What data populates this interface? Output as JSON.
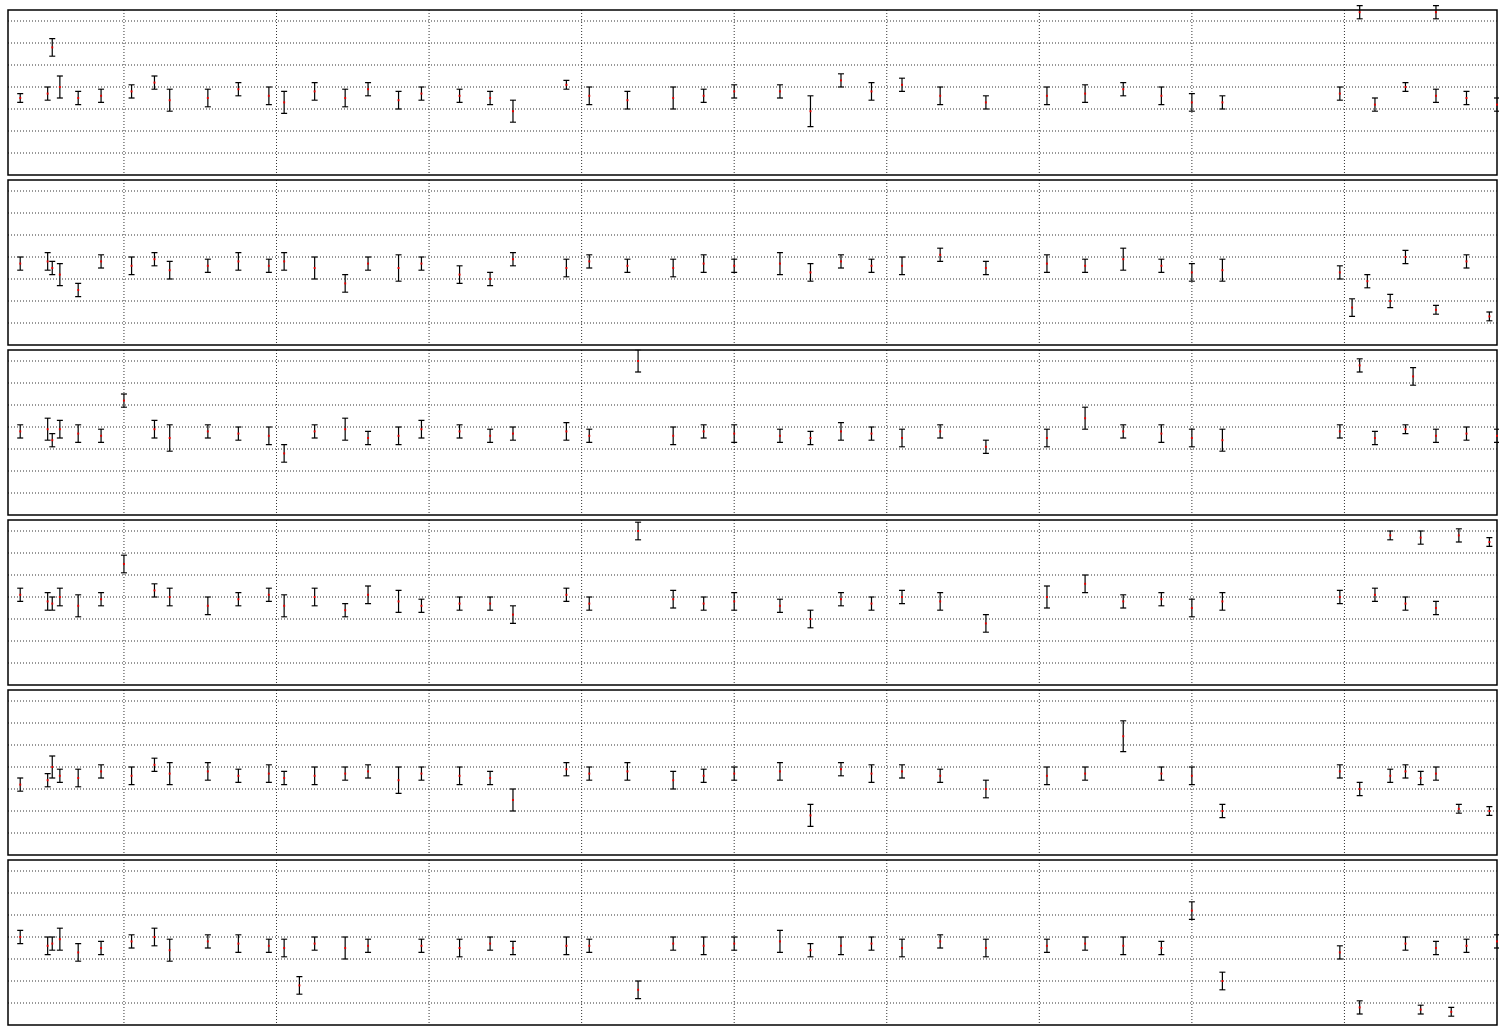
{
  "chart_data": [
    {
      "type": "errorbar",
      "grid": true,
      "color": "#000000",
      "marker_color": "#e00000",
      "xlim": [
        -0.76,
        9
      ],
      "xticks": [
        0,
        1,
        2,
        3,
        4,
        5,
        6,
        7,
        8
      ],
      "ylim": [
        0,
        7.5
      ],
      "yticks": [
        1,
        2,
        3,
        4,
        5,
        6,
        7
      ],
      "x": [
        -0.68,
        -0.5,
        -0.47,
        -0.42,
        -0.3,
        -0.15,
        0.05,
        0.2,
        0.3,
        0.55,
        0.75,
        0.95,
        1.05,
        1.25,
        1.45,
        1.6,
        1.8,
        1.95,
        2.2,
        2.4,
        2.55,
        2.9,
        3.05,
        3.3,
        3.6,
        3.8,
        4.0,
        4.3,
        4.5,
        4.7,
        4.9,
        5.1,
        5.35,
        5.65,
        6.05,
        6.3,
        6.55,
        6.8,
        7.0,
        7.2,
        7.97,
        8.2,
        8.4,
        8.6,
        8.8,
        9.0,
        8.1,
        8.6
      ],
      "values": [
        3.5,
        3.7,
        5.8,
        4.0,
        3.5,
        3.6,
        3.8,
        4.2,
        3.4,
        3.5,
        3.9,
        3.6,
        3.3,
        3.8,
        3.5,
        3.9,
        3.4,
        3.7,
        3.6,
        3.5,
        2.9,
        4.1,
        3.6,
        3.4,
        3.5,
        3.6,
        3.8,
        3.8,
        2.9,
        4.3,
        3.8,
        4.1,
        3.6,
        3.3,
        3.6,
        3.7,
        3.9,
        3.6,
        3.3,
        3.3,
        3.7,
        3.2,
        4.0,
        3.6,
        3.5,
        3.2,
        7.4,
        7.4
      ],
      "errors": [
        0.2,
        0.3,
        0.4,
        0.5,
        0.3,
        0.3,
        0.3,
        0.3,
        0.5,
        0.4,
        0.3,
        0.4,
        0.5,
        0.4,
        0.4,
        0.3,
        0.4,
        0.3,
        0.3,
        0.3,
        0.5,
        0.2,
        0.4,
        0.4,
        0.5,
        0.3,
        0.3,
        0.3,
        0.7,
        0.3,
        0.4,
        0.3,
        0.4,
        0.3,
        0.4,
        0.4,
        0.3,
        0.4,
        0.4,
        0.3,
        0.3,
        0.3,
        0.2,
        0.3,
        0.3,
        0.3,
        0.3,
        0.3
      ]
    },
    {
      "type": "errorbar",
      "grid": true,
      "color": "#000000",
      "marker_color": "#e00000",
      "xlim": [
        -0.76,
        9
      ],
      "xticks": [
        0,
        1,
        2,
        3,
        4,
        5,
        6,
        7,
        8
      ],
      "ylim": [
        0,
        7.5
      ],
      "yticks": [
        1,
        2,
        3,
        4,
        5,
        6,
        7
      ],
      "x": [
        -0.68,
        -0.5,
        -0.47,
        -0.42,
        -0.3,
        -0.15,
        0.05,
        0.2,
        0.3,
        0.55,
        0.75,
        0.95,
        1.05,
        1.25,
        1.45,
        1.6,
        1.8,
        1.95,
        2.2,
        2.4,
        2.55,
        2.9,
        3.05,
        3.3,
        3.6,
        3.8,
        4.0,
        4.3,
        4.5,
        4.7,
        4.9,
        5.1,
        5.35,
        5.65,
        6.05,
        6.3,
        6.55,
        6.8,
        7.0,
        7.2,
        7.97,
        8.05,
        8.4,
        8.3,
        8.6,
        8.95,
        8.15,
        8.8
      ],
      "values": [
        3.7,
        3.8,
        3.5,
        3.2,
        2.5,
        3.8,
        3.6,
        3.9,
        3.4,
        3.6,
        3.8,
        3.6,
        3.8,
        3.5,
        2.8,
        3.7,
        3.5,
        3.7,
        3.2,
        3.0,
        3.9,
        3.5,
        3.8,
        3.6,
        3.5,
        3.7,
        3.6,
        3.7,
        3.3,
        3.8,
        3.6,
        3.6,
        4.1,
        3.5,
        3.7,
        3.6,
        3.9,
        3.6,
        3.3,
        3.4,
        3.3,
        1.7,
        4.0,
        2.0,
        1.6,
        1.3,
        2.9,
        3.8
      ],
      "errors": [
        0.3,
        0.4,
        0.3,
        0.5,
        0.3,
        0.3,
        0.4,
        0.3,
        0.4,
        0.3,
        0.4,
        0.3,
        0.4,
        0.5,
        0.4,
        0.3,
        0.6,
        0.3,
        0.4,
        0.3,
        0.3,
        0.4,
        0.3,
        0.3,
        0.4,
        0.4,
        0.3,
        0.5,
        0.4,
        0.3,
        0.3,
        0.4,
        0.3,
        0.3,
        0.4,
        0.3,
        0.5,
        0.3,
        0.4,
        0.5,
        0.3,
        0.4,
        0.3,
        0.3,
        0.2,
        0.2,
        0.3,
        0.3
      ]
    },
    {
      "type": "errorbar",
      "grid": true,
      "color": "#000000",
      "marker_color": "#e00000",
      "xlim": [
        -0.76,
        9
      ],
      "xticks": [
        0,
        1,
        2,
        3,
        4,
        5,
        6,
        7,
        8
      ],
      "ylim": [
        0,
        7.5
      ],
      "yticks": [
        1,
        2,
        3,
        4,
        5,
        6,
        7
      ],
      "x": [
        -0.68,
        -0.5,
        -0.47,
        -0.42,
        -0.3,
        -0.15,
        0.0,
        0.2,
        0.3,
        0.55,
        0.75,
        0.95,
        1.05,
        1.25,
        1.45,
        1.6,
        1.8,
        1.95,
        2.2,
        2.4,
        2.55,
        2.9,
        3.05,
        3.37,
        3.6,
        3.8,
        4.0,
        4.3,
        4.5,
        4.7,
        4.9,
        5.1,
        5.35,
        5.65,
        6.05,
        6.3,
        6.55,
        6.8,
        7.0,
        7.2,
        7.97,
        8.2,
        8.4,
        8.6,
        8.8,
        9.0,
        8.1,
        8.45
      ],
      "values": [
        3.8,
        3.9,
        3.4,
        3.9,
        3.7,
        3.6,
        5.2,
        3.9,
        3.5,
        3.8,
        3.7,
        3.6,
        2.8,
        3.8,
        3.9,
        3.5,
        3.6,
        3.9,
        3.8,
        3.6,
        3.7,
        3.8,
        3.6,
        7.0,
        3.6,
        3.8,
        3.7,
        3.6,
        3.5,
        3.8,
        3.7,
        3.5,
        3.8,
        3.1,
        3.5,
        4.4,
        3.8,
        3.7,
        3.5,
        3.4,
        3.8,
        3.5,
        3.9,
        3.6,
        3.7,
        3.6,
        6.8,
        6.3
      ],
      "errors": [
        0.3,
        0.5,
        0.3,
        0.4,
        0.4,
        0.3,
        0.3,
        0.4,
        0.6,
        0.3,
        0.3,
        0.4,
        0.4,
        0.3,
        0.5,
        0.3,
        0.4,
        0.4,
        0.3,
        0.3,
        0.3,
        0.4,
        0.3,
        0.5,
        0.4,
        0.3,
        0.4,
        0.3,
        0.3,
        0.4,
        0.3,
        0.4,
        0.3,
        0.3,
        0.4,
        0.5,
        0.3,
        0.4,
        0.4,
        0.5,
        0.3,
        0.3,
        0.2,
        0.3,
        0.3,
        0.3,
        0.3,
        0.4
      ]
    },
    {
      "type": "errorbar",
      "grid": true,
      "color": "#000000",
      "marker_color": "#e00000",
      "xlim": [
        -0.76,
        9
      ],
      "xticks": [
        0,
        1,
        2,
        3,
        4,
        5,
        6,
        7,
        8
      ],
      "ylim": [
        0,
        7.5
      ],
      "yticks": [
        1,
        2,
        3,
        4,
        5,
        6,
        7
      ],
      "x": [
        -0.68,
        -0.5,
        -0.47,
        -0.42,
        -0.3,
        -0.15,
        0.0,
        0.2,
        0.3,
        0.55,
        0.75,
        0.95,
        1.05,
        1.25,
        1.45,
        1.6,
        1.8,
        1.95,
        2.2,
        2.4,
        2.55,
        2.9,
        3.05,
        3.37,
        3.6,
        3.8,
        4.0,
        4.3,
        4.5,
        4.7,
        4.9,
        5.1,
        5.35,
        5.65,
        6.05,
        6.3,
        6.55,
        6.8,
        7.0,
        7.2,
        7.97,
        8.2,
        8.4,
        8.6,
        8.3,
        8.5,
        8.75,
        8.95
      ],
      "values": [
        4.1,
        3.8,
        3.7,
        4.0,
        3.6,
        3.9,
        5.5,
        4.3,
        4.0,
        3.6,
        3.9,
        4.1,
        3.6,
        4.0,
        3.4,
        4.1,
        3.8,
        3.6,
        3.7,
        3.7,
        3.2,
        4.1,
        3.7,
        7.0,
        3.9,
        3.7,
        3.8,
        3.6,
        3.0,
        3.9,
        3.7,
        4.0,
        3.8,
        2.8,
        4.0,
        4.6,
        3.8,
        3.9,
        3.5,
        3.8,
        4.0,
        4.1,
        3.7,
        3.5,
        6.8,
        6.7,
        6.8,
        6.5
      ],
      "errors": [
        0.3,
        0.4,
        0.3,
        0.4,
        0.5,
        0.3,
        0.4,
        0.3,
        0.4,
        0.4,
        0.3,
        0.3,
        0.5,
        0.4,
        0.3,
        0.4,
        0.5,
        0.3,
        0.3,
        0.3,
        0.4,
        0.3,
        0.3,
        0.4,
        0.4,
        0.3,
        0.4,
        0.3,
        0.4,
        0.3,
        0.3,
        0.3,
        0.4,
        0.4,
        0.5,
        0.4,
        0.3,
        0.3,
        0.4,
        0.4,
        0.3,
        0.3,
        0.3,
        0.3,
        0.2,
        0.3,
        0.3,
        0.2
      ]
    },
    {
      "type": "errorbar",
      "grid": true,
      "color": "#000000",
      "marker_color": "#e00000",
      "xlim": [
        -0.76,
        9
      ],
      "xticks": [
        0,
        1,
        2,
        3,
        4,
        5,
        6,
        7,
        8
      ],
      "ylim": [
        0,
        7.5
      ],
      "yticks": [
        1,
        2,
        3,
        4,
        5,
        6,
        7
      ],
      "x": [
        -0.68,
        -0.5,
        -0.47,
        -0.42,
        -0.3,
        -0.15,
        0.05,
        0.2,
        0.3,
        0.55,
        0.75,
        0.95,
        1.05,
        1.25,
        1.45,
        1.6,
        1.8,
        1.95,
        2.2,
        2.4,
        2.55,
        2.9,
        3.05,
        3.3,
        3.6,
        3.8,
        4.0,
        4.3,
        4.5,
        4.7,
        4.9,
        5.1,
        5.35,
        5.65,
        6.05,
        6.3,
        6.55,
        6.8,
        7.0,
        7.2,
        7.97,
        8.1,
        8.4,
        8.6,
        8.75,
        8.95,
        8.3,
        8.5
      ],
      "values": [
        3.2,
        3.4,
        4.0,
        3.6,
        3.5,
        3.8,
        3.6,
        4.1,
        3.7,
        3.8,
        3.6,
        3.7,
        3.5,
        3.6,
        3.7,
        3.8,
        3.4,
        3.7,
        3.6,
        3.5,
        2.5,
        3.9,
        3.7,
        3.8,
        3.4,
        3.6,
        3.7,
        3.8,
        1.8,
        3.9,
        3.7,
        3.8,
        3.6,
        3.0,
        3.6,
        3.7,
        5.4,
        3.7,
        3.6,
        2.0,
        3.8,
        3.0,
        3.8,
        3.7,
        2.1,
        2.0,
        3.6,
        3.5
      ],
      "errors": [
        0.3,
        0.3,
        0.5,
        0.3,
        0.4,
        0.3,
        0.4,
        0.3,
        0.5,
        0.4,
        0.3,
        0.4,
        0.3,
        0.4,
        0.3,
        0.3,
        0.6,
        0.3,
        0.4,
        0.3,
        0.5,
        0.3,
        0.3,
        0.4,
        0.4,
        0.3,
        0.3,
        0.4,
        0.5,
        0.3,
        0.4,
        0.3,
        0.3,
        0.4,
        0.4,
        0.3,
        0.7,
        0.3,
        0.4,
        0.3,
        0.3,
        0.3,
        0.3,
        0.3,
        0.2,
        0.2,
        0.3,
        0.3
      ]
    },
    {
      "type": "errorbar",
      "grid": true,
      "color": "#000000",
      "marker_color": "#e00000",
      "xlim": [
        -0.76,
        9
      ],
      "xticks": [
        0,
        1,
        2,
        3,
        4,
        5,
        6,
        7,
        8
      ],
      "ylim": [
        0,
        7.5
      ],
      "yticks": [
        1,
        2,
        3,
        4,
        5,
        6,
        7
      ],
      "x": [
        -0.68,
        -0.5,
        -0.47,
        -0.42,
        -0.3,
        -0.15,
        0.05,
        0.2,
        0.3,
        0.55,
        0.75,
        0.95,
        1.05,
        1.25,
        1.45,
        1.6,
        1.15,
        1.95,
        2.2,
        2.4,
        2.55,
        2.9,
        3.05,
        3.37,
        3.6,
        3.8,
        4.0,
        4.3,
        4.5,
        4.7,
        4.9,
        5.1,
        5.35,
        5.65,
        6.05,
        6.3,
        6.55,
        6.8,
        7.0,
        7.2,
        7.97,
        8.1,
        8.4,
        8.6,
        8.8,
        9.0,
        8.5,
        8.7
      ],
      "values": [
        4.0,
        3.6,
        3.7,
        3.9,
        3.3,
        3.5,
        3.8,
        4.0,
        3.4,
        3.8,
        3.7,
        3.6,
        3.5,
        3.7,
        3.5,
        3.6,
        1.8,
        3.6,
        3.5,
        3.7,
        3.5,
        3.6,
        3.6,
        1.6,
        3.7,
        3.6,
        3.7,
        3.8,
        3.4,
        3.6,
        3.7,
        3.5,
        3.8,
        3.5,
        3.6,
        3.7,
        3.6,
        3.5,
        5.2,
        2.0,
        3.3,
        0.8,
        3.7,
        3.5,
        3.6,
        3.8,
        0.7,
        0.6
      ],
      "errors": [
        0.3,
        0.4,
        0.3,
        0.5,
        0.4,
        0.3,
        0.3,
        0.4,
        0.5,
        0.3,
        0.4,
        0.3,
        0.4,
        0.3,
        0.5,
        0.3,
        0.4,
        0.3,
        0.4,
        0.3,
        0.3,
        0.4,
        0.3,
        0.4,
        0.3,
        0.4,
        0.3,
        0.5,
        0.3,
        0.4,
        0.3,
        0.4,
        0.3,
        0.4,
        0.3,
        0.3,
        0.4,
        0.3,
        0.4,
        0.4,
        0.3,
        0.3,
        0.3,
        0.3,
        0.3,
        0.3,
        0.2,
        0.2
      ]
    }
  ]
}
